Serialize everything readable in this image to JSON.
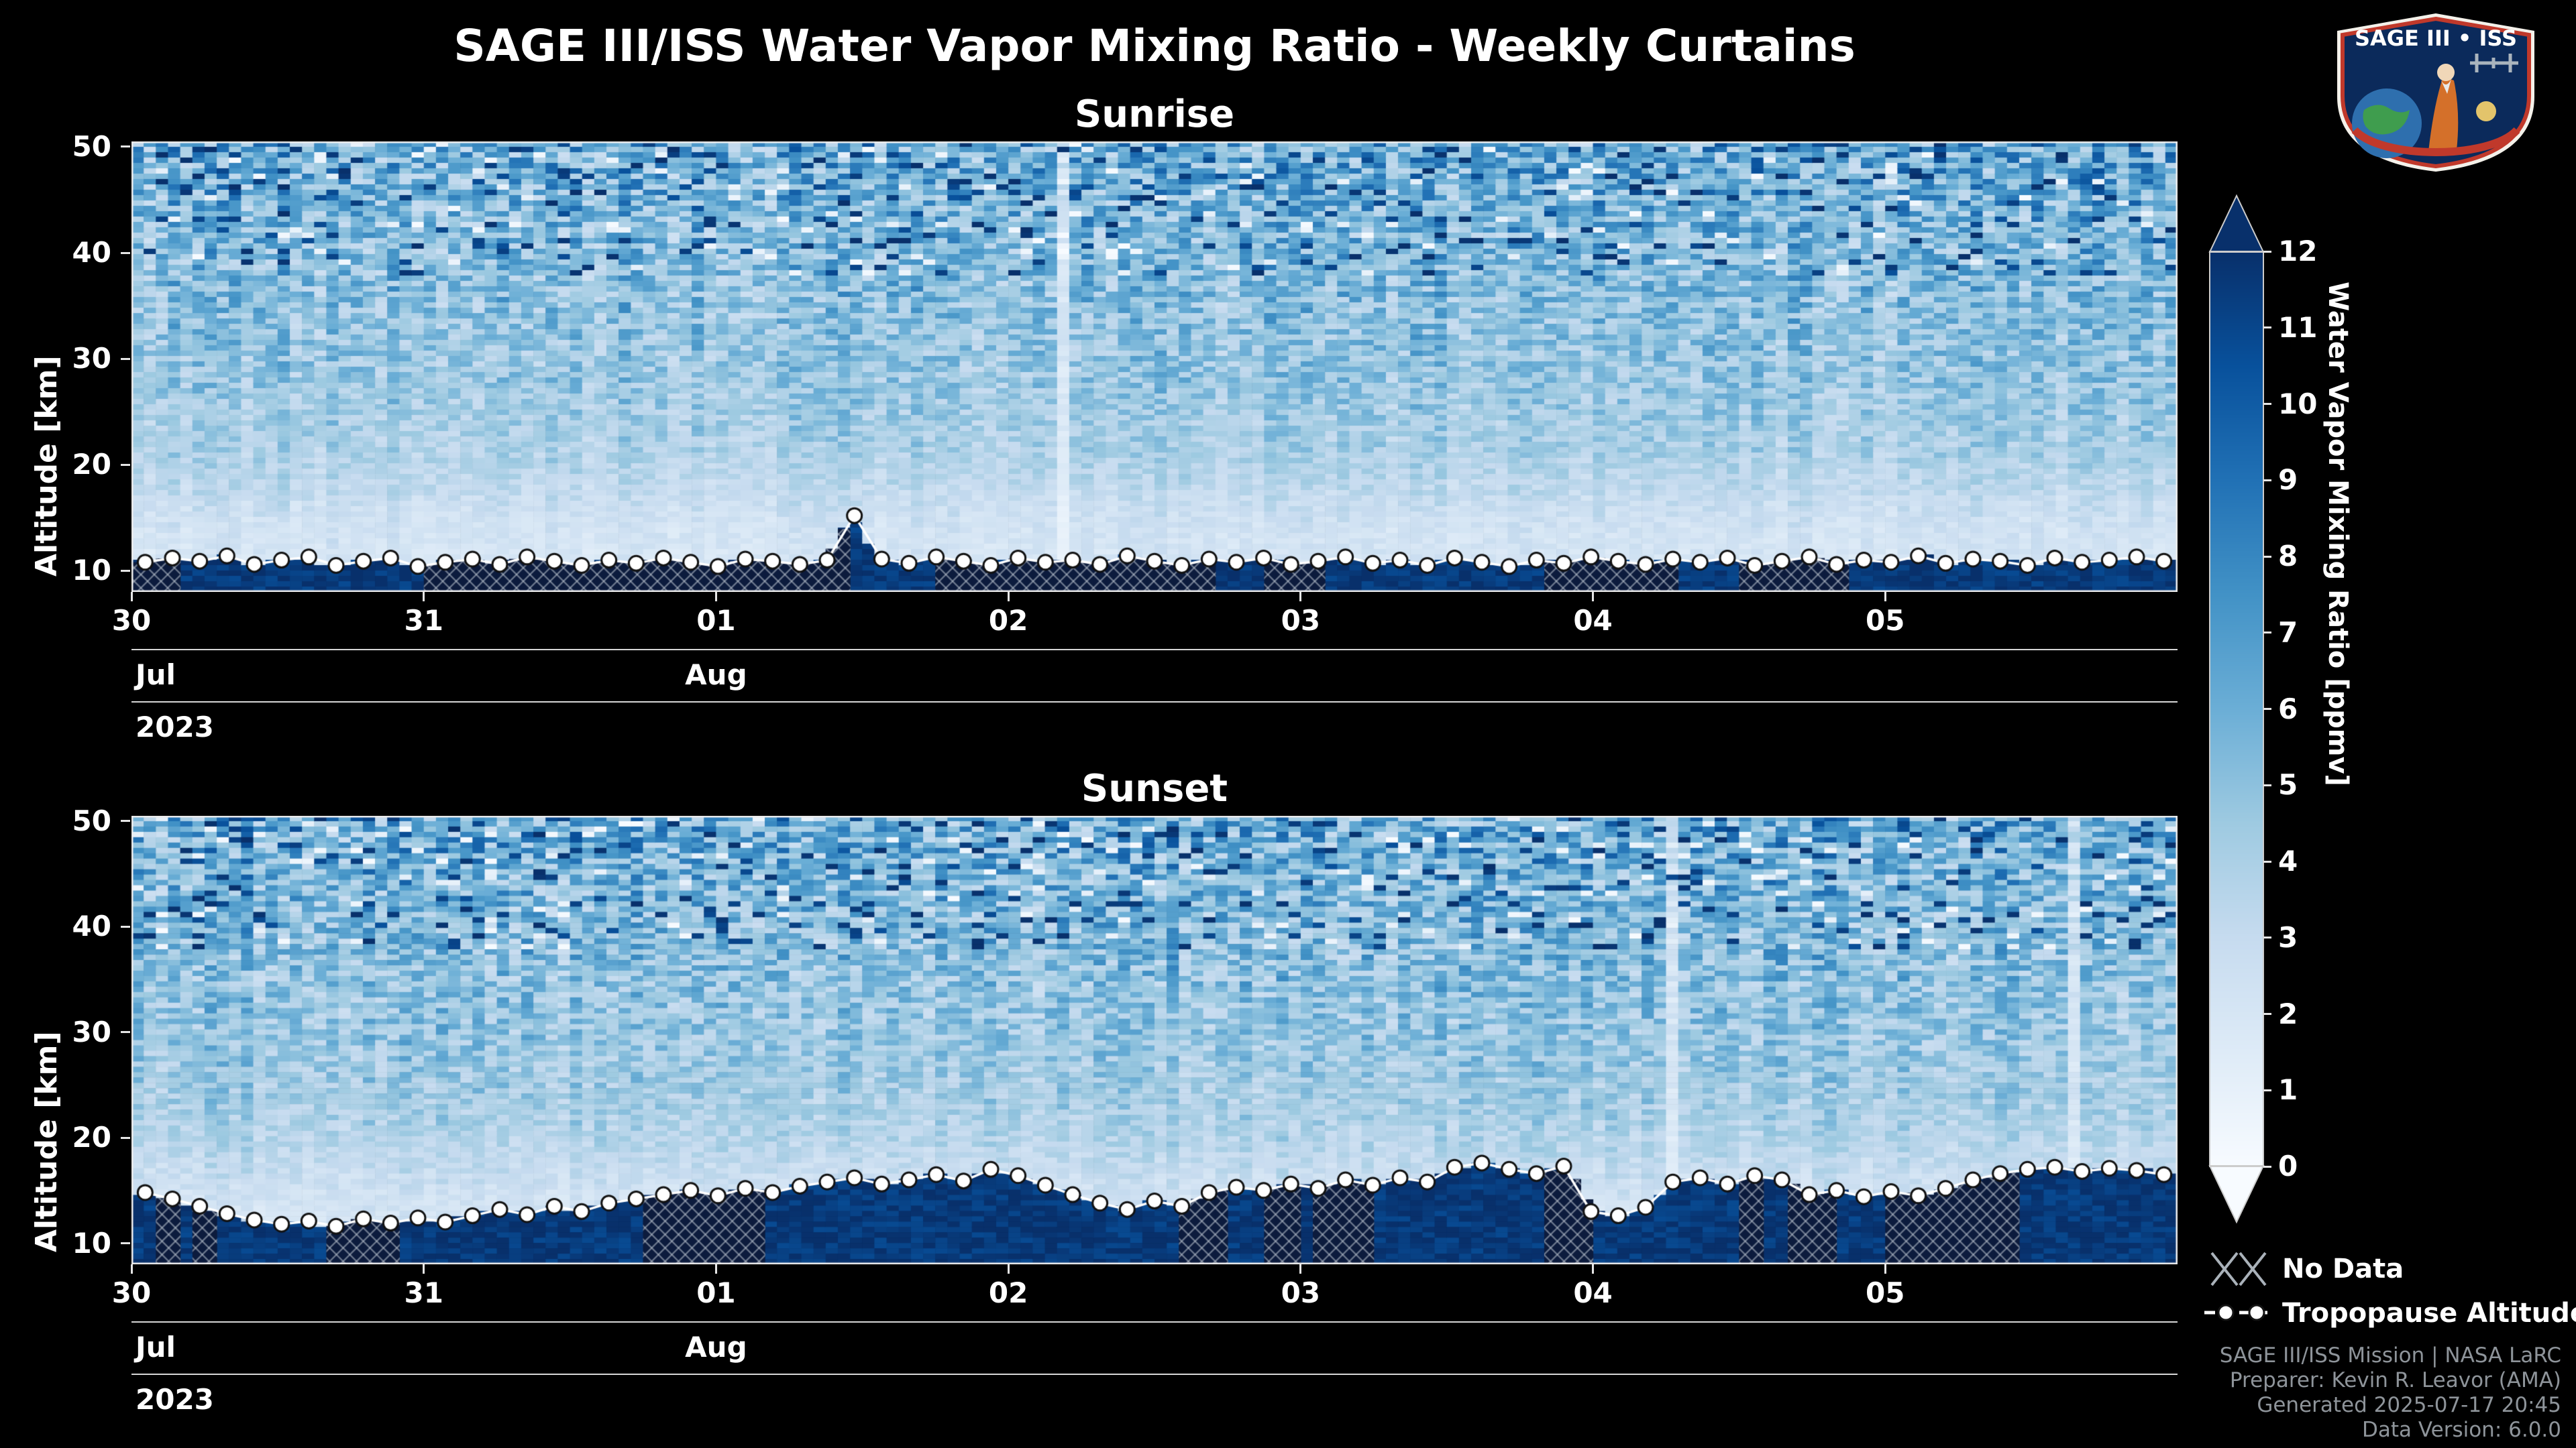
{
  "title": "SAGE III/ISS Water Vapor Mixing Ratio - Weekly Curtains",
  "logo": {
    "title": "SAGE III • ISS"
  },
  "legend": {
    "no_data_label": "No Data",
    "tropopause_label": "Tropopause Altitude"
  },
  "footer": {
    "lines": [
      "SAGE III/ISS Mission | NASA LaRC",
      "Preparer: Kevin R. Leavor (AMA)",
      "Generated 2025-07-17 20:45",
      "Data Version: 6.0.0"
    ]
  },
  "chart_data": {
    "type": "heatmap",
    "colormap": "Blues",
    "colormap_stops": [
      [
        0,
        "#f7fbff"
      ],
      [
        1.5,
        "#deebf7"
      ],
      [
        3,
        "#c6dbef"
      ],
      [
        4.5,
        "#9ecae1"
      ],
      [
        6,
        "#6baed6"
      ],
      [
        7.5,
        "#4292c6"
      ],
      [
        9,
        "#2171b5"
      ],
      [
        10.5,
        "#08519c"
      ],
      [
        12,
        "#08306b"
      ]
    ],
    "colorbar": {
      "label": "Water Vapor Mixing Ratio [ppmv]",
      "min": 0,
      "max": 12,
      "extend": "both",
      "ticks": [
        0,
        1,
        2,
        3,
        4,
        5,
        6,
        7,
        8,
        9,
        10,
        11,
        12
      ]
    },
    "grid": {
      "ncols": 168,
      "nrows": 84
    },
    "below_tropopause_value_range": [
      10.8,
      12.4
    ],
    "panels": [
      {
        "title": "Sunrise",
        "ylabel": "Altitude [km]",
        "ylim": [
          8,
          50.5
        ],
        "yticks": [
          10,
          20,
          30,
          40,
          50
        ],
        "x_days": 7,
        "xticks": [
          "30",
          "31",
          "01",
          "02",
          "03",
          "04",
          "05"
        ],
        "month_labels": [
          {
            "label": "Jul",
            "day_index": 0,
            "align": "left"
          },
          {
            "label": "Aug",
            "day_index": 2,
            "align": "center"
          }
        ],
        "year_label": "2023",
        "seed": 73023,
        "profile_alt_mean_noise": [
          [
            50,
            6.2,
            3.4
          ],
          [
            46,
            5.9,
            3.0
          ],
          [
            42,
            5.5,
            2.7
          ],
          [
            38,
            5.2,
            2.3
          ],
          [
            34,
            4.9,
            2.0
          ],
          [
            30,
            4.7,
            1.7
          ],
          [
            26,
            4.4,
            1.4
          ],
          [
            22,
            4.0,
            1.1
          ],
          [
            20,
            3.7,
            0.9
          ],
          [
            18,
            3.2,
            0.8
          ],
          [
            16,
            2.7,
            0.7
          ],
          [
            14,
            2.3,
            0.6
          ],
          [
            12,
            2.1,
            0.55
          ],
          [
            10,
            2.0,
            0.5
          ],
          [
            8,
            2.0,
            0.5
          ]
        ],
        "tropopause_km": [
          10.8,
          11.2,
          10.9,
          11.4,
          10.6,
          11.0,
          11.3,
          10.5,
          10.9,
          11.2,
          10.4,
          10.8,
          11.1,
          10.6,
          11.3,
          10.9,
          10.5,
          11.0,
          10.7,
          11.2,
          10.8,
          10.4,
          11.1,
          10.9,
          10.6,
          11.0,
          15.2,
          11.1,
          10.7,
          11.3,
          10.9,
          10.5,
          11.2,
          10.8,
          11.0,
          10.6,
          11.4,
          10.9,
          10.5,
          11.1,
          10.8,
          11.2,
          10.6,
          10.9,
          11.3,
          10.7,
          11.0,
          10.5,
          11.2,
          10.8,
          10.4,
          11.0,
          10.7,
          11.3,
          10.9,
          10.6,
          11.1,
          10.8,
          11.2,
          10.5,
          10.9,
          11.3,
          10.6,
          11.0,
          10.8,
          11.4,
          10.7,
          11.1,
          10.9,
          10.5,
          11.2,
          10.8,
          11.0,
          11.3,
          10.9
        ]
      },
      {
        "title": "Sunset",
        "ylabel": "Altitude [km]",
        "ylim": [
          8,
          50.5
        ],
        "yticks": [
          10,
          20,
          30,
          40,
          50
        ],
        "x_days": 7,
        "xticks": [
          "30",
          "31",
          "01",
          "02",
          "03",
          "04",
          "05"
        ],
        "month_labels": [
          {
            "label": "Jul",
            "day_index": 0,
            "align": "left"
          },
          {
            "label": "Aug",
            "day_index": 2,
            "align": "center"
          }
        ],
        "year_label": "2023",
        "seed": 80523,
        "profile_alt_mean_noise": [
          [
            50,
            6.2,
            3.4
          ],
          [
            46,
            5.9,
            3.0
          ],
          [
            42,
            5.5,
            2.7
          ],
          [
            38,
            5.2,
            2.3
          ],
          [
            34,
            4.9,
            2.0
          ],
          [
            30,
            4.7,
            1.7
          ],
          [
            26,
            4.4,
            1.4
          ],
          [
            22,
            4.0,
            1.1
          ],
          [
            20,
            3.7,
            0.9
          ],
          [
            18,
            3.2,
            0.8
          ],
          [
            16,
            2.7,
            0.7
          ],
          [
            14,
            2.3,
            0.6
          ],
          [
            12,
            2.1,
            0.55
          ],
          [
            10,
            2.0,
            0.5
          ],
          [
            8,
            2.0,
            0.5
          ]
        ],
        "tropopause_km": [
          14.8,
          14.2,
          13.5,
          12.8,
          12.2,
          11.8,
          12.1,
          11.6,
          12.3,
          11.9,
          12.4,
          12.0,
          12.6,
          13.2,
          12.7,
          13.5,
          13.0,
          13.8,
          14.2,
          14.6,
          15.0,
          14.5,
          15.2,
          14.8,
          15.4,
          15.8,
          16.2,
          15.6,
          16.0,
          16.5,
          15.9,
          17.0,
          16.4,
          15.5,
          14.6,
          13.8,
          13.2,
          14.0,
          13.5,
          14.8,
          15.3,
          15.0,
          15.6,
          15.2,
          16.0,
          15.5,
          16.2,
          15.8,
          17.2,
          17.6,
          17.0,
          16.6,
          17.3,
          13.0,
          12.6,
          13.4,
          15.8,
          16.2,
          15.6,
          16.4,
          16.0,
          14.6,
          15.0,
          14.4,
          14.9,
          14.5,
          15.2,
          16.0,
          16.6,
          17.0,
          17.2,
          16.8,
          17.1,
          16.9,
          16.5
        ]
      }
    ]
  }
}
